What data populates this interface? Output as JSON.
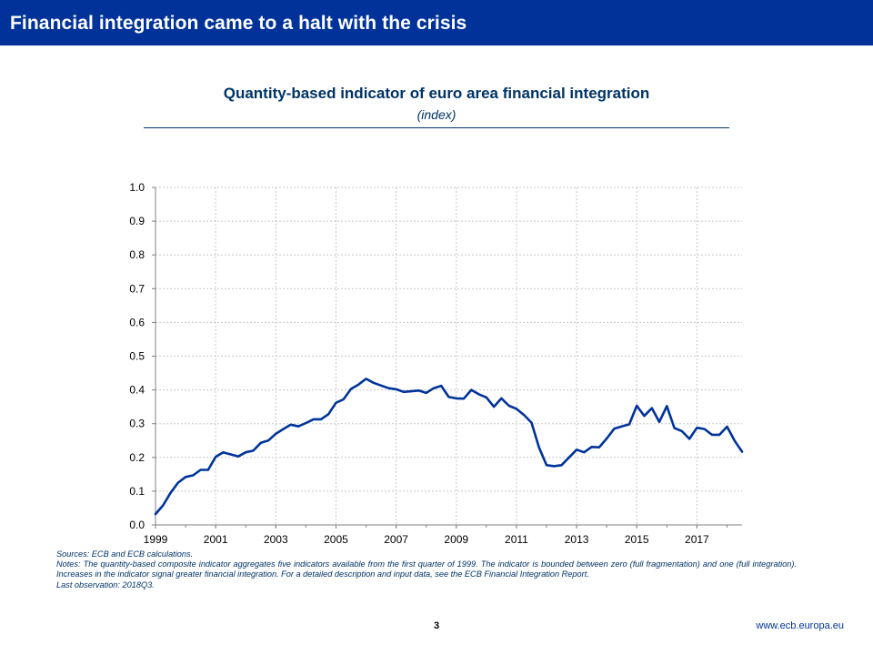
{
  "slide": {
    "title": "Financial integration came to a halt with the crisis",
    "page_number": "3",
    "website": "www.ecb.europa.eu"
  },
  "colors": {
    "header_bg": "#003299",
    "line": "#003399",
    "text": "#003366"
  },
  "chart_data": {
    "type": "line",
    "title": "Quantity-based indicator of euro area financial integration",
    "subtitle": "(index)",
    "xlabel": "",
    "ylabel": "",
    "ylim": [
      0,
      1.0
    ],
    "xlim": [
      1999,
      2018.5
    ],
    "y_ticks": [
      "0.0",
      "0.1",
      "0.2",
      "0.3",
      "0.4",
      "0.5",
      "0.6",
      "0.7",
      "0.8",
      "0.9",
      "1.0"
    ],
    "x_ticks": [
      "1999",
      "2001",
      "2003",
      "2005",
      "2007",
      "2009",
      "2011",
      "2013",
      "2015",
      "2017"
    ],
    "grid": true,
    "series": [
      {
        "name": "Quantity-based composite indicator",
        "x": [
          1999.0,
          1999.25,
          1999.5,
          1999.75,
          2000.0,
          2000.25,
          2000.5,
          2000.75,
          2001.0,
          2001.25,
          2001.5,
          2001.75,
          2002.0,
          2002.25,
          2002.5,
          2002.75,
          2003.0,
          2003.25,
          2003.5,
          2003.75,
          2004.0,
          2004.25,
          2004.5,
          2004.75,
          2005.0,
          2005.25,
          2005.5,
          2005.75,
          2006.0,
          2006.25,
          2006.5,
          2006.75,
          2007.0,
          2007.25,
          2007.5,
          2007.75,
          2008.0,
          2008.25,
          2008.5,
          2008.75,
          2009.0,
          2009.25,
          2009.5,
          2009.75,
          2010.0,
          2010.25,
          2010.5,
          2010.75,
          2011.0,
          2011.25,
          2011.5,
          2011.75,
          2012.0,
          2012.25,
          2012.5,
          2012.75,
          2013.0,
          2013.25,
          2013.5,
          2013.75,
          2014.0,
          2014.25,
          2014.5,
          2014.75,
          2015.0,
          2015.25,
          2015.5,
          2015.75,
          2016.0,
          2016.25,
          2016.5,
          2016.75,
          2017.0,
          2017.25,
          2017.5,
          2017.75,
          2018.0,
          2018.25,
          2018.5
        ],
        "values": [
          0.032,
          0.058,
          0.095,
          0.125,
          0.142,
          0.147,
          0.163,
          0.163,
          0.202,
          0.215,
          0.209,
          0.203,
          0.215,
          0.22,
          0.243,
          0.25,
          0.27,
          0.284,
          0.297,
          0.292,
          0.302,
          0.313,
          0.313,
          0.328,
          0.362,
          0.372,
          0.403,
          0.416,
          0.433,
          0.421,
          0.413,
          0.405,
          0.402,
          0.394,
          0.396,
          0.398,
          0.391,
          0.405,
          0.412,
          0.379,
          0.375,
          0.374,
          0.4,
          0.387,
          0.378,
          0.35,
          0.375,
          0.353,
          0.344,
          0.326,
          0.303,
          0.23,
          0.177,
          0.174,
          0.177,
          0.2,
          0.223,
          0.215,
          0.231,
          0.23,
          0.256,
          0.285,
          0.292,
          0.298,
          0.353,
          0.323,
          0.346,
          0.305,
          0.352,
          0.287,
          0.278,
          0.255,
          0.288,
          0.284,
          0.267,
          0.267,
          0.291,
          0.25,
          0.217
        ]
      }
    ]
  },
  "notes": {
    "sources": "Sources: ECB and ECB calculations.",
    "notes": "Notes: The quantity-based composite indicator aggregates five indicators available from the first quarter of 1999. The indicator is bounded between zero (full fragmentation) and one (full integration). Increases in the indicator signal greater financial integration. For a detailed description and input data, see the ECB Financial Integration Report.",
    "last_observation": "Last observation: 2018Q3."
  }
}
